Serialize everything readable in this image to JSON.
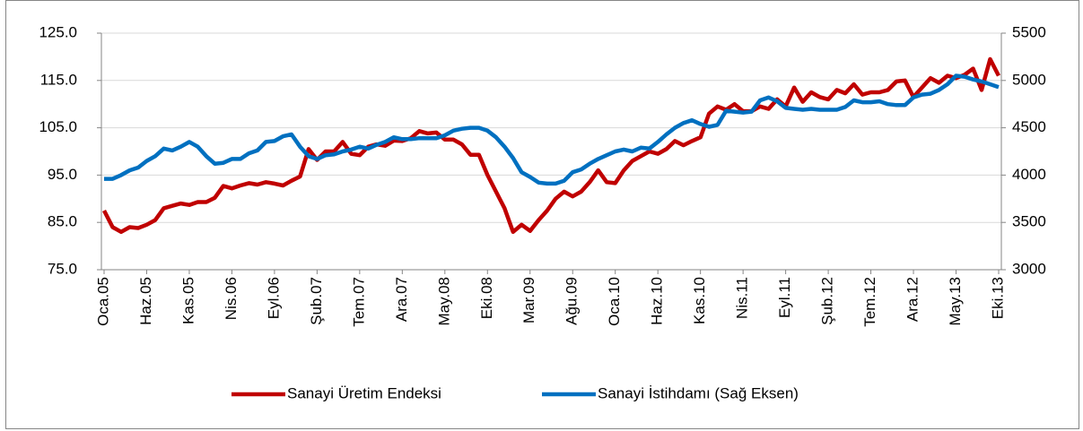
{
  "chart_data": {
    "type": "line",
    "categories": [
      "Oca.05",
      null,
      null,
      null,
      null,
      "Haz.05",
      null,
      null,
      null,
      null,
      "Kas.05",
      null,
      null,
      null,
      null,
      "Nis.06",
      null,
      null,
      null,
      null,
      "Eyl.06",
      null,
      null,
      null,
      null,
      "Şub.07",
      null,
      null,
      null,
      null,
      "Tem.07",
      null,
      null,
      null,
      null,
      "Ara.07",
      null,
      null,
      null,
      null,
      "May.08",
      null,
      null,
      null,
      null,
      "Eki.08",
      null,
      null,
      null,
      null,
      "Mar.09",
      null,
      null,
      null,
      null,
      "Ağu.09",
      null,
      null,
      null,
      null,
      "Oca.10",
      null,
      null,
      null,
      null,
      "Haz.10",
      null,
      null,
      null,
      null,
      "Kas.10",
      null,
      null,
      null,
      null,
      "Nis.11",
      null,
      null,
      null,
      null,
      "Eyl.11",
      null,
      null,
      null,
      null,
      "Şub.12",
      null,
      null,
      null,
      null,
      "Tem.12",
      null,
      null,
      null,
      null,
      "Ara.12",
      null,
      null,
      null,
      null,
      "May.13",
      null,
      null,
      null,
      null,
      "Eki.13"
    ],
    "series": [
      {
        "name": "Sanayi Üretim Endeksi",
        "color": "#c00000",
        "axis": "y",
        "values": [
          87.5,
          84,
          83,
          84,
          83.8,
          84.5,
          85.5,
          88,
          88.5,
          89,
          88.7,
          89.3,
          89.3,
          90.2,
          92.7,
          92.2,
          92.8,
          93.3,
          93,
          93.5,
          93.2,
          92.8,
          93.8,
          94.7,
          100.5,
          98.2,
          100,
          100,
          102,
          99.5,
          99.2,
          101,
          101.5,
          101.2,
          102.3,
          102.2,
          102.8,
          104.3,
          103.8,
          104,
          102.5,
          102.5,
          101.5,
          99.3,
          99.3,
          95,
          91.5,
          88,
          83,
          84.5,
          83.2,
          85.5,
          87.5,
          90,
          91.5,
          90.5,
          91.5,
          93.5,
          96,
          93.5,
          93.3,
          96,
          98,
          99,
          100,
          99.5,
          100.5,
          102.2,
          101.3,
          102.2,
          103,
          108,
          109.5,
          108.8,
          110,
          108.5,
          108.5,
          109.5,
          109,
          111,
          109.5,
          113.5,
          110.5,
          112.5,
          111.5,
          111,
          113,
          112.3,
          114.2,
          112,
          112.5,
          112.5,
          113,
          114.8,
          115,
          111.5,
          113.5,
          115.5,
          114.5,
          116,
          115.5,
          116.2,
          117.5,
          113,
          119.5,
          116
        ]
      },
      {
        "name": "Sanayi İstihdamı (Sağ Eksen)",
        "color": "#0070c0",
        "axis": "y2",
        "values": [
          3960,
          3960,
          4000,
          4050,
          4080,
          4150,
          4200,
          4280,
          4260,
          4300,
          4350,
          4300,
          4200,
          4120,
          4130,
          4170,
          4170,
          4230,
          4260,
          4350,
          4360,
          4410,
          4430,
          4300,
          4200,
          4170,
          4210,
          4220,
          4250,
          4270,
          4300,
          4280,
          4320,
          4350,
          4400,
          4380,
          4380,
          4390,
          4390,
          4390,
          4420,
          4470,
          4490,
          4500,
          4500,
          4470,
          4400,
          4300,
          4180,
          4030,
          3980,
          3920,
          3910,
          3910,
          3940,
          4030,
          4060,
          4120,
          4170,
          4210,
          4250,
          4270,
          4250,
          4290,
          4280,
          4350,
          4430,
          4500,
          4550,
          4580,
          4540,
          4510,
          4530,
          4680,
          4670,
          4660,
          4670,
          4790,
          4820,
          4780,
          4710,
          4700,
          4690,
          4700,
          4690,
          4690,
          4690,
          4720,
          4790,
          4770,
          4770,
          4780,
          4750,
          4740,
          4740,
          4820,
          4850,
          4860,
          4900,
          4960,
          5050,
          5040,
          5010,
          4990,
          4960,
          4930
        ]
      }
    ],
    "ylim": [
      75,
      125
    ],
    "yticks": [
      {
        "value": 75,
        "label": "75.0"
      },
      {
        "value": 85,
        "label": "85.0"
      },
      {
        "value": 95,
        "label": "95.0"
      },
      {
        "value": 105,
        "label": "105.0"
      },
      {
        "value": 115,
        "label": "115.0"
      },
      {
        "value": 125,
        "label": "125.0"
      }
    ],
    "y2lim": [
      3000,
      5500
    ],
    "y2ticks": [
      3000,
      3500,
      4000,
      4500,
      5000,
      5500
    ],
    "grid": true,
    "legend": "bottom"
  }
}
